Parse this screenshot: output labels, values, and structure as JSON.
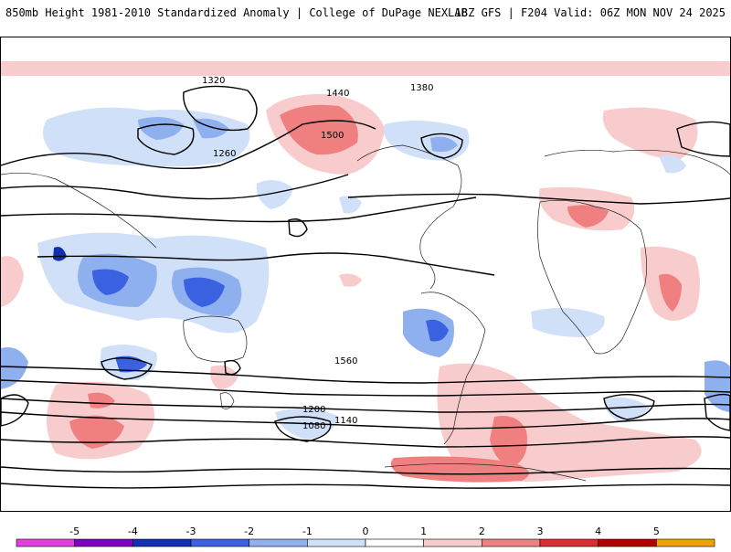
{
  "header": {
    "title_left": "850mb Height 1981-2010 Standardized Anomaly | College of DuPage NEXLAB",
    "title_right": "18Z GFS | F204 Valid: 06Z MON NOV 24 2025"
  },
  "map": {
    "contour_labels": [
      "1320",
      "1380",
      "1440",
      "1500",
      "1560",
      "1260",
      "1200",
      "1140",
      "1080"
    ],
    "labels": {
      "l1320a": "1320",
      "l1380a": "1380",
      "l1440a": "1440",
      "l1500a": "1500",
      "l1560a": "1560",
      "l1260a": "1260",
      "l1200a": "1200",
      "l1140a": "1140",
      "l1080a": "1080"
    }
  },
  "colorbar": {
    "ticks": [
      "-5",
      "-4",
      "-3",
      "-2",
      "-1",
      "0",
      "1",
      "2",
      "3",
      "4",
      "5"
    ],
    "colors": [
      "#e040e0",
      "#8000c0",
      "#1030b0",
      "#3a62e0",
      "#8fb0ee",
      "#cfe0f8",
      "#ffffff",
      "#f8cccc",
      "#f08080",
      "#d83030",
      "#b00000",
      "#f0a000"
    ]
  }
}
